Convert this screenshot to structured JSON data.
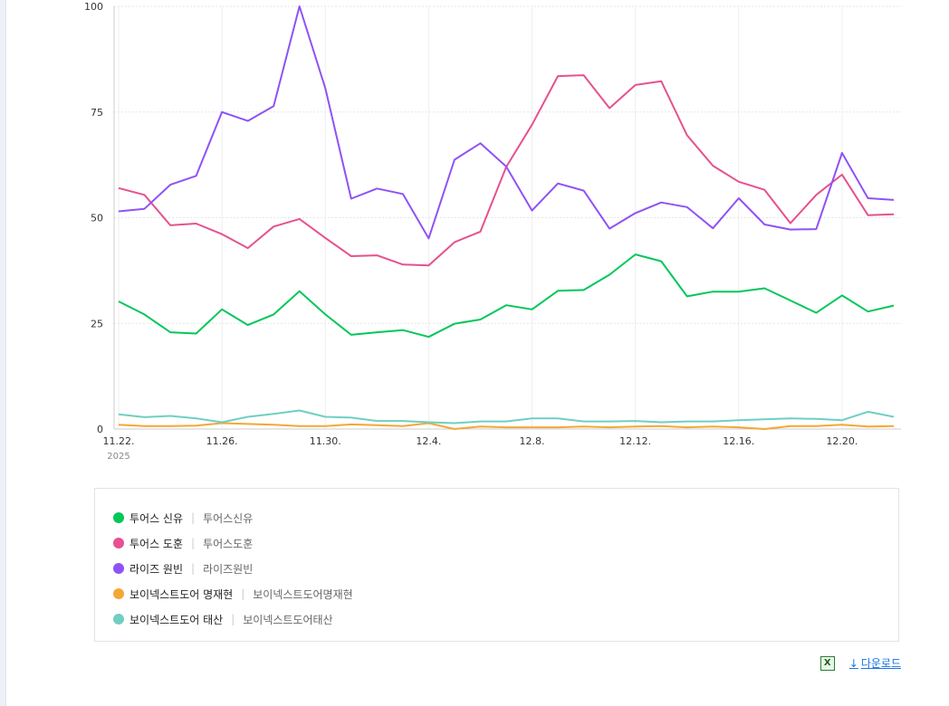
{
  "chart_data": {
    "type": "line",
    "x": [
      "11.22.",
      "11.23.",
      "11.24.",
      "11.25.",
      "11.26.",
      "11.27.",
      "11.28.",
      "11.29.",
      "11.30.",
      "12.1.",
      "12.2.",
      "12.3.",
      "12.4.",
      "12.5.",
      "12.6.",
      "12.7.",
      "12.8.",
      "12.9.",
      "12.10.",
      "12.11.",
      "12.12.",
      "12.13.",
      "12.14.",
      "12.15.",
      "12.16.",
      "12.17.",
      "12.18.",
      "12.19.",
      "12.20.",
      "12.21.",
      "12.22."
    ],
    "x_tick_labels": [
      "11.22.",
      "11.26.",
      "11.30.",
      "12.4.",
      "12.8.",
      "12.12.",
      "12.16.",
      "12.20."
    ],
    "year_label": "2025",
    "ylim": [
      0,
      100
    ],
    "y_ticks": [
      0,
      25,
      50,
      75,
      100
    ],
    "grid": true,
    "series": [
      {
        "name": "투어스 신유",
        "color": "#03c75a",
        "values": [
          30.2,
          27.1,
          22.9,
          22.6,
          28.3,
          24.6,
          27.1,
          32.6,
          27.1,
          22.3,
          22.9,
          23.4,
          21.8,
          24.9,
          25.9,
          29.3,
          28.3,
          32.7,
          32.9,
          36.5,
          41.3,
          39.7,
          31.4,
          32.5,
          32.5,
          33.3,
          30.4,
          27.5,
          31.6,
          27.8,
          29.2
        ]
      },
      {
        "name": "투어스 도훈",
        "color": "#e6518f",
        "values": [
          57.0,
          55.4,
          48.2,
          48.6,
          46.1,
          42.8,
          47.9,
          49.7,
          45.2,
          40.9,
          41.1,
          38.9,
          38.7,
          44.2,
          46.7,
          62.0,
          72.0,
          83.5,
          83.7,
          75.9,
          81.4,
          82.3,
          69.5,
          62.3,
          58.5,
          56.6,
          48.7,
          55.4,
          60.2,
          50.6,
          50.8
        ]
      },
      {
        "name": "라이즈 원빈",
        "color": "#8f52f5",
        "values": [
          51.5,
          52.1,
          57.8,
          59.9,
          75.0,
          72.9,
          76.4,
          100.0,
          80.6,
          54.5,
          56.9,
          55.6,
          45.1,
          63.7,
          67.6,
          62.1,
          51.7,
          58.1,
          56.4,
          47.4,
          51.1,
          53.6,
          52.5,
          47.5,
          54.6,
          48.4,
          47.2,
          47.3,
          65.3,
          54.6,
          54.2
        ]
      },
      {
        "name": "보이넥스트도어 명재현",
        "color": "#f5a735",
        "values": [
          1.0,
          0.7,
          0.7,
          0.8,
          1.4,
          1.2,
          1.0,
          0.7,
          0.7,
          1.1,
          0.9,
          0.7,
          1.4,
          0.0,
          0.6,
          0.4,
          0.4,
          0.4,
          0.6,
          0.4,
          0.6,
          0.7,
          0.4,
          0.6,
          0.4,
          0.0,
          0.7,
          0.7,
          1.0,
          0.6,
          0.7
        ]
      },
      {
        "name": "보이넥스트도어 태산",
        "color": "#6fcfc2",
        "values": [
          3.5,
          2.8,
          3.1,
          2.5,
          1.6,
          2.9,
          3.6,
          4.4,
          2.9,
          2.7,
          1.9,
          1.9,
          1.6,
          1.4,
          1.8,
          1.8,
          2.5,
          2.5,
          1.8,
          1.8,
          1.9,
          1.6,
          1.8,
          1.8,
          2.1,
          2.3,
          2.5,
          2.4,
          2.1,
          4.1,
          2.9
        ]
      }
    ]
  },
  "legend": {
    "items": [
      {
        "label": "투어스 신유",
        "sub": "투어스신유",
        "color": "#03c75a"
      },
      {
        "label": "투어스 도훈",
        "sub": "투어스도훈",
        "color": "#e6518f"
      },
      {
        "label": "라이즈 원빈",
        "sub": "라이즈원빈",
        "color": "#8f52f5"
      },
      {
        "label": "보이넥스트도어 명재현",
        "sub": "보이넥스트도어명재현",
        "color": "#f5a735"
      },
      {
        "label": "보이넥스트도어 태산",
        "sub": "보이넥스트도어태산",
        "color": "#6fcfc2"
      }
    ],
    "separator": "|"
  },
  "download": {
    "label": "다운로드",
    "arrow_glyph": "↓",
    "excel_glyph": "X",
    "icon": "excel-icon"
  }
}
